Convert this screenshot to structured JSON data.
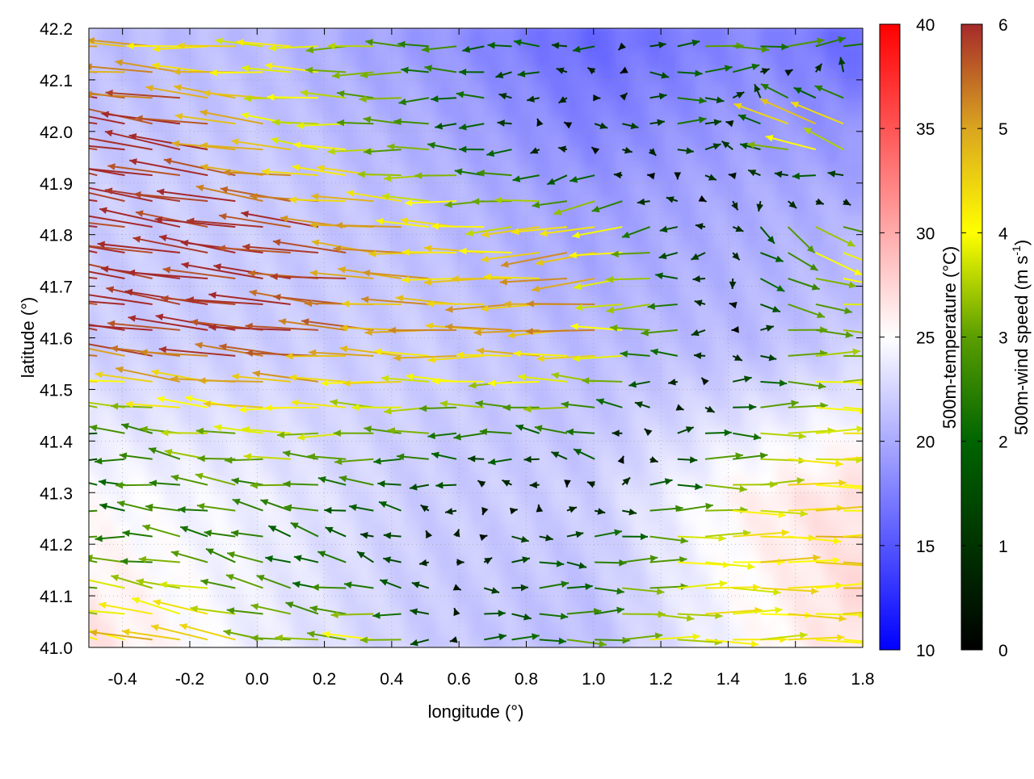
{
  "chart_data": {
    "type": "heatmap",
    "overlay": "vector-field",
    "xlabel": "longitude (°)",
    "ylabel": "latitude (°)",
    "xlim": [
      -0.5,
      1.8
    ],
    "ylim": [
      41.0,
      42.2
    ],
    "xticks": [
      "-0.4",
      "-0.2",
      "0.0",
      "0.2",
      "0.4",
      "0.6",
      "0.8",
      "1.0",
      "1.2",
      "1.4",
      "1.6",
      "1.8"
    ],
    "yticks": [
      "41.0",
      "41.1",
      "41.2",
      "41.3",
      "41.4",
      "41.5",
      "41.6",
      "41.7",
      "41.8",
      "41.9",
      "42.0",
      "42.1",
      "42.2"
    ],
    "temperature_colorbar": {
      "label": "500m-temperature (°C)",
      "range": [
        10,
        40
      ],
      "ticks": [
        "10",
        "15",
        "20",
        "25",
        "30",
        "35",
        "40"
      ],
      "colors": {
        "low": "#0000ff",
        "mid": "#ffffff",
        "high": "#ff0000"
      }
    },
    "wind_colorbar": {
      "label": "500m-wind speed (m s",
      "label_sup": "-1",
      "label_end": ")",
      "range": [
        0,
        6
      ],
      "ticks": [
        "0",
        "1",
        "2",
        "3",
        "4",
        "5",
        "6"
      ],
      "colors": [
        "#000000",
        "#003300",
        "#006400",
        "#5a9e00",
        "#ffff00",
        "#daa520",
        "#a52a2a"
      ]
    },
    "temperature_field": {
      "lons": [
        -0.5,
        0.0,
        0.5,
        1.0,
        1.5,
        1.8
      ],
      "lats": [
        41.0,
        41.3,
        41.6,
        41.9,
        42.2
      ],
      "values": [
        [
          27,
          24,
          22,
          21,
          25,
          27
        ],
        [
          25,
          24,
          22,
          22,
          26,
          27
        ],
        [
          22,
          22,
          22,
          21,
          21,
          22
        ],
        [
          22,
          22,
          21,
          19,
          20,
          20
        ],
        [
          21,
          21,
          19,
          16,
          18,
          16
        ]
      ]
    },
    "wind_field": {
      "lons": [
        -0.5,
        -0.2,
        0.1,
        0.4,
        0.7,
        1.0,
        1.3,
        1.6,
        1.8
      ],
      "lats": [
        41.0,
        41.2,
        41.4,
        41.6,
        41.8,
        42.0,
        42.2
      ],
      "u": [
        [
          -4,
          -5,
          -3,
          -4,
          2,
          3,
          4,
          4,
          4.5
        ],
        [
          -2.5,
          -2.5,
          -2,
          -1,
          1,
          2,
          4,
          4.5,
          4.5
        ],
        [
          -1.5,
          -3,
          -3.5,
          -3,
          -2,
          -2,
          2,
          4,
          4
        ],
        [
          -6,
          -6,
          -6,
          -5,
          -5,
          -5,
          -2,
          3,
          3.5
        ],
        [
          -6,
          -6,
          -6,
          -5,
          -4,
          -5,
          -1,
          3,
          4
        ],
        [
          -6,
          -6,
          -4,
          -3,
          -1.5,
          1,
          2,
          -5,
          -5
        ],
        [
          -5,
          -4,
          -4,
          -3,
          -2,
          -2,
          3,
          4,
          4
        ]
      ],
      "v": [
        [
          1,
          1,
          0.5,
          0,
          0,
          0,
          0,
          0,
          0
        ],
        [
          0,
          0.5,
          0.8,
          0.5,
          0,
          0,
          0,
          0,
          0
        ],
        [
          0,
          0.5,
          0,
          0,
          0,
          0.5,
          0,
          0,
          0
        ],
        [
          0.8,
          0.8,
          0.6,
          0.3,
          0,
          0,
          0,
          0,
          0
        ],
        [
          1,
          1,
          0.8,
          0.5,
          0,
          -1,
          0,
          -2,
          -1
        ],
        [
          1,
          1,
          0.5,
          0,
          0,
          0,
          0,
          1.5,
          2
        ],
        [
          0,
          0,
          0,
          0,
          0,
          0,
          0,
          0,
          0
        ]
      ]
    }
  }
}
